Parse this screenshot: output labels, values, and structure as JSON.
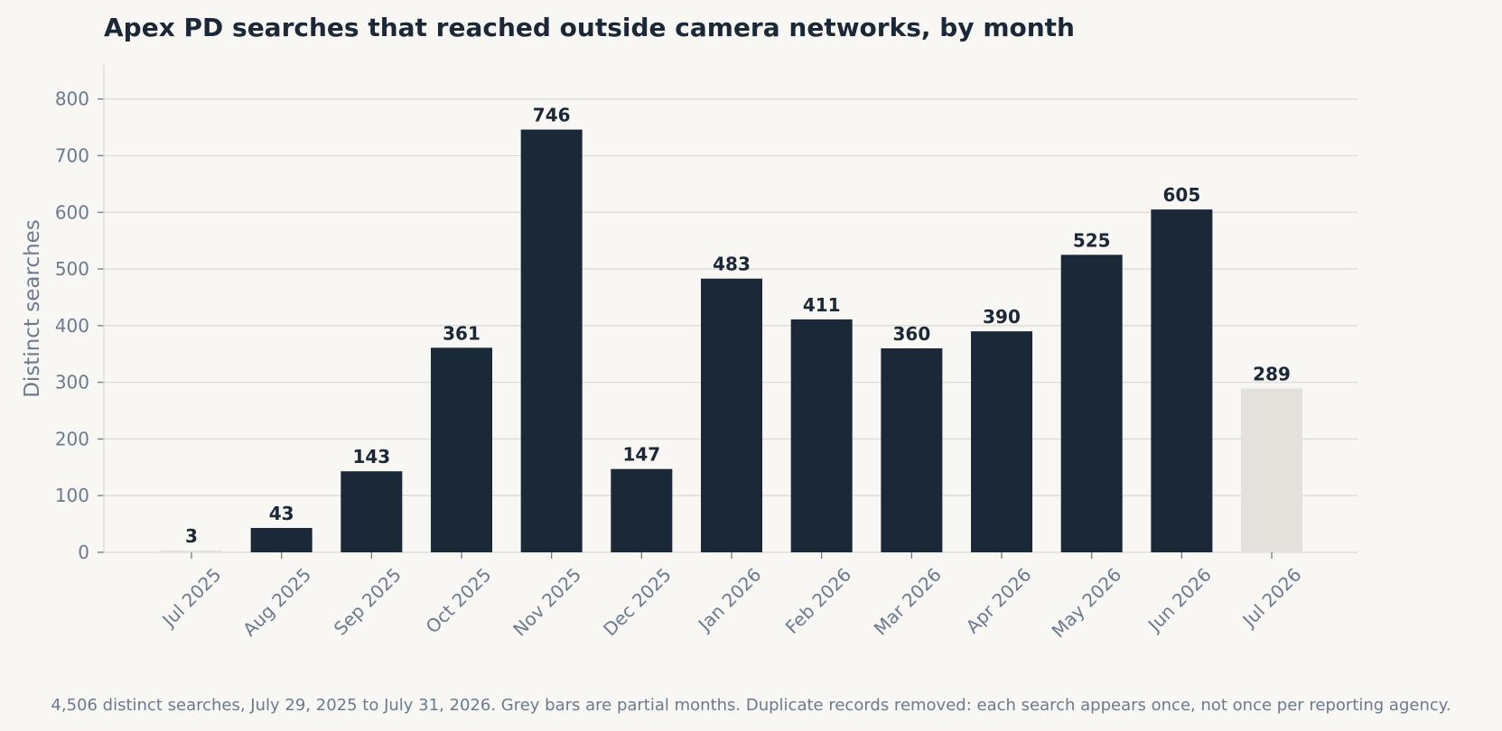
{
  "chart_data": {
    "type": "bar",
    "title": "Apex PD searches that reached outside camera networks, by month",
    "ylabel": "Distinct searches",
    "xlabel": "",
    "categories": [
      "Jul 2025",
      "Aug 2025",
      "Sep 2025",
      "Oct 2025",
      "Nov 2025",
      "Dec 2025",
      "Jan 2026",
      "Feb 2026",
      "Mar 2026",
      "Apr 2026",
      "May 2026",
      "Jun 2026",
      "Jul 2026"
    ],
    "values": [
      3,
      43,
      143,
      361,
      746,
      147,
      483,
      411,
      360,
      390,
      525,
      605,
      289
    ],
    "partial": [
      true,
      false,
      false,
      false,
      false,
      false,
      false,
      false,
      false,
      false,
      false,
      false,
      true
    ],
    "ylim": [
      0,
      860
    ],
    "yticks": [
      0,
      100,
      200,
      300,
      400,
      500,
      600,
      700,
      800
    ],
    "grid": true,
    "colors": {
      "full": "#1b2838",
      "partial": "#e3e1dc",
      "text": "#1b2838",
      "muted": "#6b7a8f"
    },
    "footnote": "4,506 distinct searches, July 29, 2025 to July 31, 2026. Grey bars are partial months. Duplicate records removed: each search appears once, not once per reporting agency."
  }
}
